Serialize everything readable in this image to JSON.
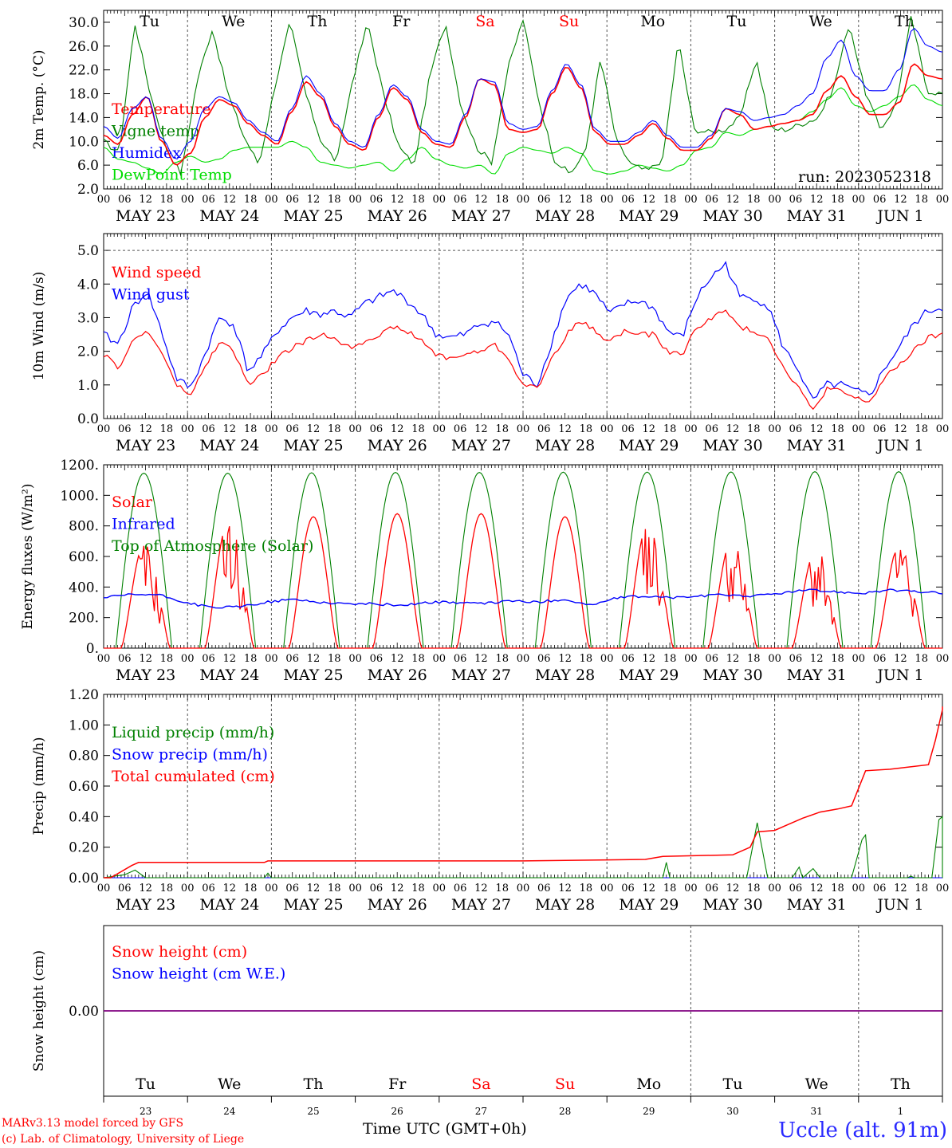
{
  "colors": {
    "red": "#ff0000",
    "blue": "#0000ff",
    "green": "#008000",
    "lime": "#00dd00",
    "purple": "#800080",
    "grid": "#555555"
  },
  "chart_data": [
    {
      "type": "line",
      "ylabel": "2m Temp. (°C)",
      "ylim": [
        2.0,
        32.0
      ],
      "yticks": [
        "2.0",
        "6.0",
        "10.0",
        "14.0",
        "18.0",
        "22.0",
        "26.0",
        "30.0"
      ],
      "ytick_values": [
        2,
        6,
        10,
        14,
        18,
        22,
        26,
        30
      ],
      "annotation": "run: 2023052318",
      "series": [
        {
          "name": "Temperature",
          "color": "#ff0000",
          "values": [
            11.0,
            9.5,
            14.5,
            17.5,
            10.0,
            6.0,
            8.0,
            14.0,
            17.0,
            16.0,
            13.0,
            11.0,
            9.5,
            15.0,
            20.0,
            17.5,
            12.5,
            9.5,
            8.5,
            14.0,
            19.0,
            17.0,
            11.5,
            9.5,
            9.0,
            14.0,
            20.5,
            19.5,
            12.0,
            11.5,
            12.0,
            18.0,
            22.5,
            19.0,
            11.5,
            9.5,
            9.5,
            11.0,
            13.0,
            10.5,
            8.5,
            8.5,
            10.5,
            15.5,
            14.5,
            12.0,
            12.5,
            13.0,
            13.5,
            14.5,
            18.5,
            21.0,
            17.5,
            14.5,
            14.5,
            16.5,
            23.0,
            21.0,
            20.5
          ]
        },
        {
          "name": "Vigne temp",
          "color": "#008000",
          "values": [
            10.0,
            8.0,
            30.0,
            18.0,
            9.0,
            4.5,
            20.0,
            29.0,
            18.0,
            11.0,
            6.0,
            19.0,
            30.0,
            18.0,
            10.0,
            6.5,
            20.0,
            30.0,
            18.0,
            9.0,
            6.0,
            21.0,
            30.0,
            16.0,
            9.0,
            6.5,
            22.0,
            30.5,
            17.0,
            7.0,
            4.5,
            8.0,
            24.0,
            10.0,
            6.0,
            5.0,
            7.0,
            27.0,
            12.0,
            11.5,
            12.0,
            14.0,
            24.0,
            12.0,
            12.0,
            13.0,
            14.0,
            19.0,
            30.0,
            18.5,
            12.0,
            16.0,
            31.0,
            18.5,
            18.0
          ]
        },
        {
          "name": "Humidex",
          "color": "#0000ff",
          "values": [
            12.5,
            10.5,
            15.5,
            17.5,
            10.5,
            7.0,
            10.0,
            15.5,
            17.5,
            16.5,
            13.5,
            11.5,
            10.0,
            15.5,
            21.0,
            18.0,
            13.0,
            10.0,
            9.0,
            14.5,
            19.5,
            17.5,
            12.0,
            10.0,
            9.5,
            14.5,
            20.5,
            20.0,
            13.0,
            12.0,
            12.5,
            18.5,
            23.0,
            19.5,
            12.0,
            10.0,
            10.0,
            11.5,
            13.5,
            11.0,
            9.0,
            9.0,
            11.0,
            15.5,
            15.0,
            13.5,
            14.0,
            14.5,
            16.0,
            18.0,
            24.0,
            27.0,
            21.0,
            18.5,
            18.5,
            22.0,
            29.0,
            26.0,
            25.0
          ]
        },
        {
          "name": "DewPoint Temp",
          "color": "#00dd00",
          "values": [
            9.0,
            7.0,
            6.5,
            5.5,
            4.5,
            6.5,
            7.5,
            6.5,
            7.0,
            8.5,
            9.0,
            9.0,
            9.0,
            10.0,
            9.0,
            6.5,
            6.0,
            5.5,
            6.0,
            6.5,
            5.0,
            7.0,
            9.0,
            7.0,
            6.0,
            5.5,
            6.0,
            4.5,
            8.0,
            9.0,
            8.5,
            8.0,
            9.0,
            8.0,
            5.0,
            4.5,
            5.0,
            6.0,
            5.5,
            5.0,
            6.0,
            8.5,
            9.0,
            11.5,
            11.0,
            12.0,
            12.5,
            13.0,
            13.5,
            15.0,
            17.0,
            19.0,
            16.0,
            15.0,
            16.0,
            17.5,
            19.5,
            17.0,
            16.0
          ]
        }
      ]
    },
    {
      "type": "line",
      "ylabel": "10m Wind (m/s)",
      "ylim": [
        0.0,
        5.5
      ],
      "yticks": [
        "0.0",
        "1.0",
        "2.0",
        "3.0",
        "4.0",
        "5.0"
      ],
      "ytick_values": [
        0,
        1,
        2,
        3,
        4,
        5
      ],
      "series": [
        {
          "name": "Wind speed",
          "color": "#ff0000",
          "values": [
            1.9,
            1.5,
            2.3,
            2.6,
            2.0,
            1.0,
            0.7,
            1.5,
            2.3,
            2.0,
            1.0,
            1.3,
            1.8,
            2.1,
            2.3,
            2.5,
            2.4,
            2.1,
            2.3,
            2.5,
            2.7,
            2.6,
            2.3,
            1.9,
            1.8,
            1.9,
            2.0,
            2.2,
            1.8,
            1.0,
            0.9,
            1.8,
            2.5,
            2.9,
            2.6,
            2.3,
            2.6,
            2.5,
            2.5,
            2.0,
            1.9,
            2.7,
            3.0,
            3.2,
            2.7,
            2.6,
            2.4,
            1.5,
            1.0,
            0.2,
            0.9,
            0.8,
            0.6,
            0.5,
            1.2,
            1.6,
            2.0,
            2.4,
            2.5
          ]
        },
        {
          "name": "Wind gust",
          "color": "#0000ff",
          "values": [
            2.5,
            2.2,
            3.3,
            3.8,
            2.6,
            1.2,
            0.9,
            1.9,
            3.0,
            2.8,
            1.4,
            1.9,
            2.6,
            3.0,
            3.2,
            3.1,
            3.2,
            3.0,
            3.4,
            3.6,
            3.8,
            3.5,
            3.1,
            2.5,
            2.4,
            2.5,
            2.8,
            2.9,
            2.5,
            1.3,
            1.0,
            2.3,
            3.6,
            4.0,
            3.7,
            3.1,
            3.4,
            3.5,
            3.3,
            2.6,
            2.4,
            3.6,
            4.2,
            4.6,
            3.6,
            3.6,
            3.3,
            2.1,
            1.5,
            0.5,
            1.0,
            1.0,
            0.8,
            0.7,
            1.5,
            2.1,
            2.8,
            3.2,
            3.3
          ]
        }
      ]
    },
    {
      "type": "line",
      "ylabel": "Energy fluxes (W/m²)",
      "ylim": [
        0,
        1200
      ],
      "yticks": [
        "0.",
        "200.",
        "400.",
        "600.",
        "800.",
        "1000.",
        "1200."
      ],
      "ytick_values": [
        0,
        200,
        400,
        600,
        800,
        1000,
        1200
      ],
      "series": [
        {
          "name": "Solar",
          "color": "#ff0000",
          "daily_peak": [
            700,
            850,
            860,
            880,
            880,
            860,
            830,
            720,
            650,
            690
          ]
        },
        {
          "name": "Infrared",
          "color": "#0000ff",
          "values": [
            330,
            350,
            350,
            300,
            265,
            270,
            300,
            320,
            300,
            290,
            290,
            280,
            300,
            300,
            290,
            310,
            300,
            320,
            280,
            330,
            340,
            330,
            340,
            350,
            340,
            360,
            380,
            370,
            360,
            380,
            370,
            360
          ]
        },
        {
          "name": "Top of Atmosphere (Solar)",
          "color": "#008000",
          "daily_peak": [
            1145,
            1145,
            1148,
            1150,
            1150,
            1152,
            1152,
            1153,
            1155,
            1155
          ]
        }
      ]
    },
    {
      "type": "line",
      "ylabel": "Precip (mm/h)",
      "ylim": [
        0.0,
        1.2
      ],
      "yticks": [
        "0.00",
        "0.20",
        "0.40",
        "0.60",
        "0.80",
        "1.00",
        "1.20"
      ],
      "ytick_values": [
        0,
        0.2,
        0.4,
        0.6,
        0.8,
        1.0,
        1.2
      ],
      "series": [
        {
          "name": "Liquid precip (mm/h)",
          "color": "#008000",
          "points": [
            [
              0,
              0
            ],
            [
              6,
              0.02
            ],
            [
              9,
              0.05
            ],
            [
              12,
              0.0
            ],
            [
              46,
              0.0
            ],
            [
              47,
              0.03
            ],
            [
              48,
              0.0
            ],
            [
              160,
              0.0
            ],
            [
              161,
              0.1
            ],
            [
              162,
              0.0
            ],
            [
              184,
              0.0
            ],
            [
              187,
              0.36
            ],
            [
              190,
              0.0
            ],
            [
              197,
              0.0
            ],
            [
              199,
              0.07
            ],
            [
              200,
              0.0
            ],
            [
              203,
              0.06
            ],
            [
              205,
              0.0
            ],
            [
              214,
              0.0
            ],
            [
              217,
              0.25
            ],
            [
              218,
              0.28
            ],
            [
              219,
              0.0
            ],
            [
              230,
              0.0
            ],
            [
              231,
              0.01
            ],
            [
              232,
              0.0
            ],
            [
              237,
              0.0
            ],
            [
              239,
              0.38
            ],
            [
              240,
              0.4
            ],
            [
              241,
              0.0
            ],
            [
              246,
              0.0
            ]
          ]
        },
        {
          "name": "Snow precip (mm/h)",
          "color": "#0000ff",
          "points": [
            [
              0,
              0
            ],
            [
              246,
              0
            ]
          ]
        },
        {
          "name": "Total cumulated (cm)",
          "color": "#ff0000",
          "points": [
            [
              0,
              0.0
            ],
            [
              2,
              0.0
            ],
            [
              8,
              0.08
            ],
            [
              10,
              0.1
            ],
            [
              46,
              0.1
            ],
            [
              47,
              0.11
            ],
            [
              120,
              0.11
            ],
            [
              155,
              0.12
            ],
            [
              160,
              0.14
            ],
            [
              180,
              0.15
            ],
            [
              185,
              0.2
            ],
            [
              187,
              0.3
            ],
            [
              192,
              0.31
            ],
            [
              196,
              0.35
            ],
            [
              200,
              0.39
            ],
            [
              205,
              0.43
            ],
            [
              210,
              0.45
            ],
            [
              214,
              0.47
            ],
            [
              218,
              0.7
            ],
            [
              225,
              0.71
            ],
            [
              236,
              0.74
            ],
            [
              238,
              0.9
            ],
            [
              240,
              1.1
            ],
            [
              246,
              1.12
            ]
          ]
        }
      ]
    },
    {
      "type": "line",
      "ylabel": "Snow height (cm)",
      "ylim": [
        -1,
        1
      ],
      "yticks": [
        "0.00"
      ],
      "ytick_values": [
        0
      ],
      "series": [
        {
          "name": "Snow height (cm)",
          "color": "#ff0000",
          "points": [
            [
              0,
              0
            ],
            [
              246,
              0
            ]
          ]
        },
        {
          "name": "Snow height (cm W.E.)",
          "color": "#0000ff",
          "points": [
            [
              0,
              0
            ],
            [
              246,
              0
            ]
          ]
        }
      ]
    }
  ],
  "x_axis": {
    "hour_ticks": [
      "00",
      "06",
      "12",
      "18"
    ],
    "end_tick": "00",
    "dates": [
      "MAY 23",
      "MAY 24",
      "MAY 25",
      "MAY 26",
      "MAY 27",
      "MAY 28",
      "MAY 29",
      "MAY 30",
      "MAY 31",
      "JUN  1"
    ],
    "weekdays": [
      "Tu",
      "We",
      "Th",
      "Fr",
      "Sa",
      "Su",
      "Mo",
      "Tu",
      "We",
      "Th"
    ],
    "weekend_flags": [
      false,
      false,
      false,
      false,
      true,
      true,
      false,
      false,
      false,
      false
    ],
    "day_numbers": [
      "23",
      "24",
      "25",
      "26",
      "27",
      "28",
      "29",
      "30",
      "31",
      "1"
    ]
  },
  "footer": {
    "credit_line1": "MARv3.13 model forced by GFS",
    "credit_line2": "(c) Lab. of Climatology, University of Liege",
    "time_axis_label": "Time UTC (GMT+0h)",
    "station": "Uccle (alt. 91m)"
  }
}
